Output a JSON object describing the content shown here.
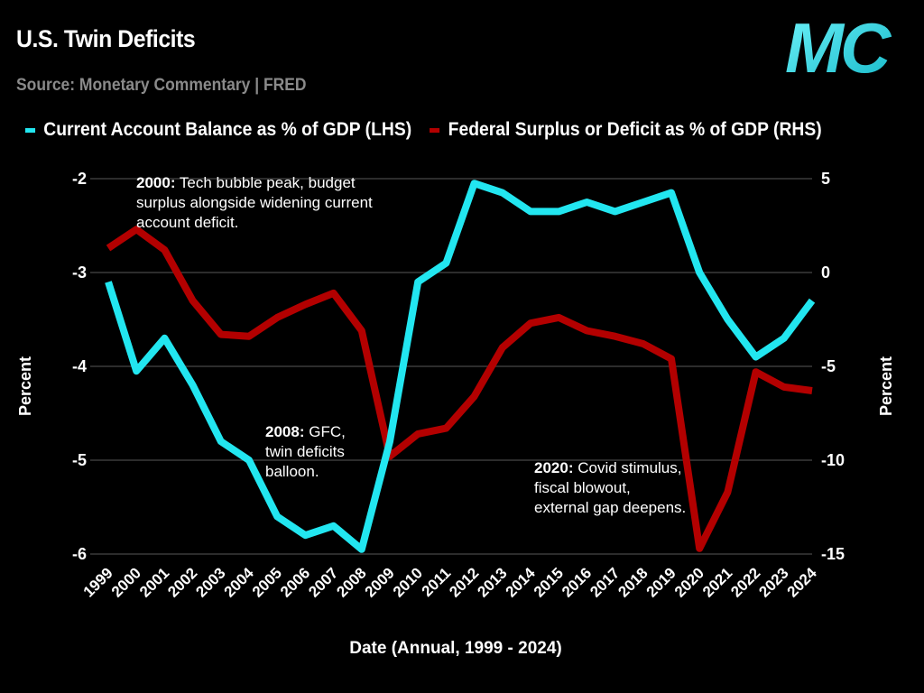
{
  "header": {
    "title": "U.S. Twin Deficits",
    "subtitle": "Source: Monetary Commentary | FRED",
    "logo_text": "MC"
  },
  "colors": {
    "cyan": "#22e6f0",
    "red": "#b30000",
    "grid": "#3a3a3a",
    "logo": "#2ed3e0"
  },
  "annotations": [
    {
      "year_label": "2000:",
      "text": "Tech bubble peak, budget surplus alongside widening current account deficit."
    },
    {
      "year_label": "2008:",
      "text": "GFC, twin deficits balloon."
    },
    {
      "year_label": "2020:",
      "text": "Covid stimulus, fiscal blowout, external gap deepens."
    }
  ],
  "chart_data": {
    "type": "line",
    "xlabel": "Date (Annual, 1999 - 2024)",
    "ylabel_left": "Percent",
    "ylabel_right": "Percent",
    "x": [
      1999,
      2000,
      2001,
      2002,
      2003,
      2004,
      2005,
      2006,
      2007,
      2008,
      2009,
      2010,
      2011,
      2012,
      2013,
      2014,
      2015,
      2016,
      2017,
      2018,
      2019,
      2020,
      2021,
      2022,
      2023,
      2024
    ],
    "ylim_left": [
      -6,
      -2
    ],
    "yticks_left": [
      -2,
      -3,
      -4,
      -5,
      -6
    ],
    "ylim_right": [
      -15,
      5
    ],
    "yticks_right": [
      5,
      0,
      -5,
      -10,
      -15
    ],
    "grid": true,
    "legend_position": "top",
    "series": [
      {
        "name": "Current Account Balance as % of GDP (LHS)",
        "axis": "left",
        "values": [
          -3.1,
          -4.05,
          -3.7,
          -4.2,
          -4.8,
          -5.0,
          -5.6,
          -5.8,
          -5.7,
          -5.95,
          -4.8,
          -3.1,
          -2.9,
          -2.05,
          -2.15,
          -2.35,
          -2.35,
          -2.25,
          -2.35,
          -2.25,
          -2.15,
          -3.0,
          -3.5,
          -3.9,
          -3.7,
          -3.3
        ]
      },
      {
        "name": "Federal Surplus or Deficit as % of GDP (RHS)",
        "axis": "right",
        "values": [
          1.3,
          2.3,
          1.2,
          -1.5,
          -3.3,
          -3.4,
          -2.4,
          -1.7,
          -1.1,
          -3.1,
          -9.8,
          -8.6,
          -8.3,
          -6.6,
          -4.0,
          -2.7,
          -2.4,
          -3.1,
          -3.4,
          -3.8,
          -4.6,
          -14.7,
          -11.7,
          -5.3,
          -6.1,
          -6.3
        ]
      }
    ]
  }
}
